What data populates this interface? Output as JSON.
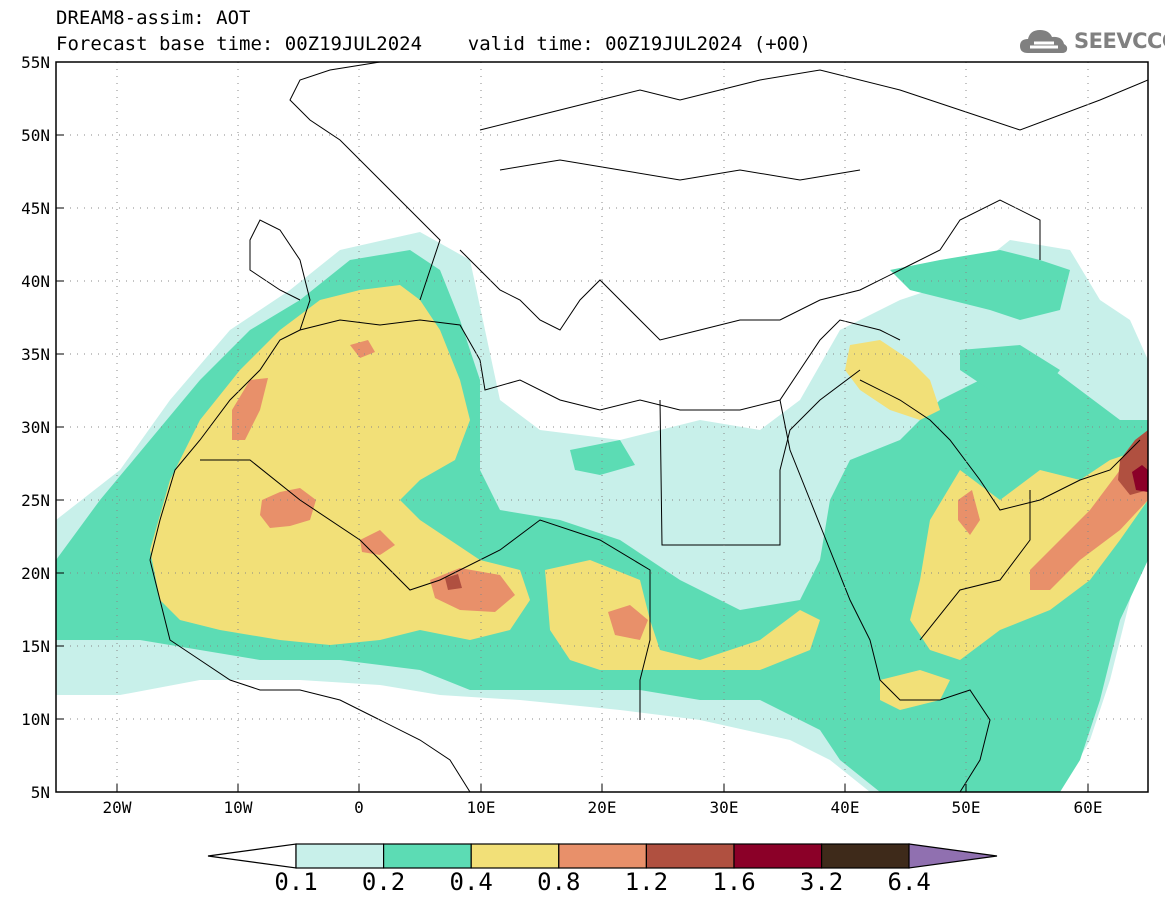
{
  "title": {
    "line1": "DREAM8-assim: AOT",
    "line2": "Forecast base time: 00Z19JUL2024    valid time: 00Z19JUL2024 (+00)"
  },
  "logo": {
    "text": "SEEVCCC",
    "icon": "cloud-icon"
  },
  "map": {
    "region": "North Africa, Europe, Middle East",
    "lon_range": [
      -25,
      65
    ],
    "lat_range": [
      5,
      55
    ],
    "lon_ticks": [
      "20W",
      "10W",
      "0",
      "10E",
      "20E",
      "30E",
      "40E",
      "50E",
      "60E"
    ],
    "lat_ticks": [
      "55N",
      "50N",
      "45N",
      "40N",
      "35N",
      "30N",
      "25N",
      "20N",
      "15N",
      "10N",
      "5N"
    ],
    "grid": "dotted"
  },
  "colorbar": {
    "labels": [
      "0.1",
      "0.2",
      "0.4",
      "0.8",
      "1.2",
      "1.6",
      "3.2",
      "6.4"
    ],
    "colors": [
      "#c8f0ea",
      "#5cdcb4",
      "#f2e078",
      "#e8906a",
      "#b05040",
      "#8b0028",
      "#3e2a1a",
      "#9070b0"
    ]
  }
}
